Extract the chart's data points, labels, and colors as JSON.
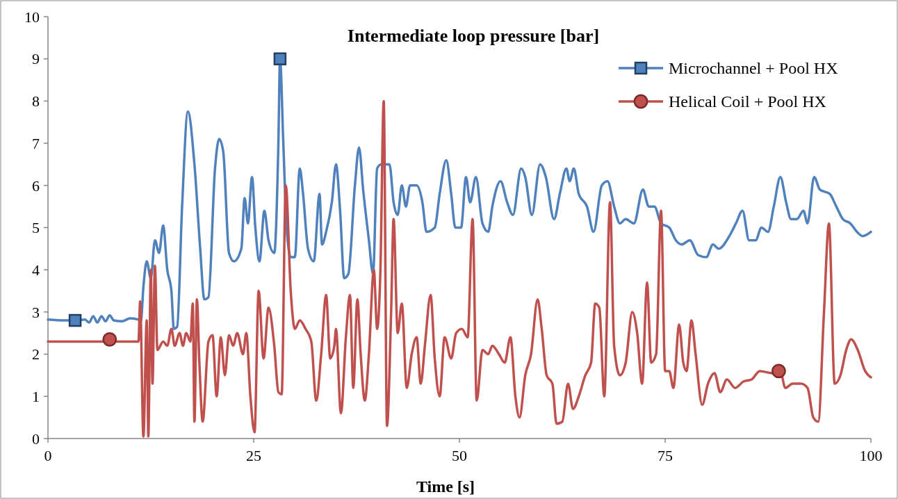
{
  "chart_data": {
    "type": "line",
    "title": "Intermediate loop pressure  [bar]",
    "xlabel": "Time [s]",
    "xlim": [
      0,
      100
    ],
    "xticks": [
      0,
      25,
      50,
      75,
      100
    ],
    "ylim": [
      0,
      10
    ],
    "yticks": [
      0,
      1,
      2,
      3,
      4,
      5,
      6,
      7,
      8,
      9,
      10
    ],
    "grid": false,
    "legend": "top right",
    "line_style": "solid",
    "series": [
      {
        "name": "Microchannel + Pool HX",
        "color": "#4f81bd",
        "x": [
          0,
          2,
          3.3,
          4.5,
          5,
          5.5,
          6,
          6.5,
          7,
          7.5,
          8,
          9,
          10,
          11,
          11.3,
          11.6,
          12,
          12.5,
          13,
          13.5,
          14,
          14.5,
          15,
          15.3,
          15.7,
          16.3,
          17,
          17.8,
          18.5,
          19,
          19.5,
          20.3,
          20.8,
          21.3,
          22,
          22.6,
          23.5,
          23.9,
          24.3,
          24.8,
          25.2,
          25.7,
          26.3,
          26.8,
          27.5,
          28,
          28.2,
          28.6,
          29,
          29.5,
          30,
          30.6,
          31,
          31.6,
          32.3,
          33,
          33.3,
          33.8,
          34.5,
          35,
          35.5,
          36,
          36.5,
          37.3,
          37.8,
          38.3,
          39,
          39.5,
          40,
          40.5,
          41.5,
          42,
          42.5,
          43,
          43.5,
          44,
          44.8,
          45.5,
          46,
          47,
          47.6,
          48.4,
          49,
          49.5,
          50.2,
          50.8,
          51.3,
          52,
          52.8,
          53.5,
          54,
          55,
          55.8,
          56.5,
          57.5,
          58,
          58.8,
          59.8,
          60.5,
          61.5,
          62.2,
          63,
          63.4,
          63.9,
          64.5,
          65.5,
          66.3,
          67.3,
          68,
          68.8,
          69.5,
          70.2,
          71.2,
          72.3,
          73,
          73.7,
          74.5,
          75.5,
          76.3,
          77,
          78,
          79,
          80,
          80.8,
          81.5,
          82.8,
          83.6,
          84.4,
          85.2,
          86,
          86.7,
          87.5,
          88.2,
          89,
          89.7,
          90.3,
          91,
          91.8,
          92.3,
          93.1,
          93.8,
          95,
          95.8,
          96.6,
          97.5,
          98.3,
          99,
          100
        ],
        "values": [
          2.82,
          2.8,
          2.8,
          2.82,
          2.75,
          2.9,
          2.75,
          2.9,
          2.78,
          2.92,
          2.8,
          2.78,
          2.85,
          2.82,
          2.8,
          3.6,
          4.2,
          3.8,
          4.7,
          4.4,
          5.05,
          4.0,
          3.5,
          2.6,
          2.65,
          5.5,
          7.75,
          6.5,
          4.5,
          3.3,
          3.35,
          6.4,
          7.1,
          6.8,
          4.4,
          4.2,
          4.5,
          5.7,
          5.1,
          6.2,
          5.0,
          4.2,
          5.4,
          4.7,
          4.4,
          7.0,
          9.0,
          7.0,
          5.0,
          4.3,
          4.3,
          6.4,
          5.8,
          4.5,
          4.2,
          5.8,
          4.6,
          4.9,
          5.6,
          6.5,
          5.4,
          3.8,
          3.9,
          6.0,
          6.9,
          5.9,
          4.7,
          3.9,
          6.4,
          6.5,
          6.5,
          5.6,
          5.3,
          6.0,
          5.5,
          6.0,
          6.0,
          5.6,
          4.9,
          5.0,
          5.8,
          6.6,
          5.8,
          5.0,
          5.0,
          6.2,
          5.6,
          6.2,
          5.1,
          4.9,
          5.5,
          6.1,
          5.6,
          5.3,
          6.4,
          6.2,
          5.3,
          6.5,
          6.2,
          5.2,
          5.8,
          6.4,
          6.1,
          6.4,
          5.8,
          5.5,
          4.9,
          6.0,
          6.1,
          5.5,
          5.1,
          5.2,
          5.1,
          5.9,
          5.5,
          5.5,
          5.1,
          5.0,
          4.7,
          4.6,
          4.7,
          4.35,
          4.3,
          4.6,
          4.5,
          4.8,
          5.1,
          5.4,
          4.7,
          4.7,
          5.0,
          4.9,
          5.5,
          6.2,
          5.6,
          5.2,
          5.2,
          5.4,
          5.1,
          6.2,
          5.9,
          5.8,
          5.5,
          5.2,
          5.1,
          4.9,
          4.8,
          4.9
        ]
      },
      {
        "name": "Helical Coil + Pool HX",
        "color": "#c0504d",
        "x": [
          0,
          11,
          11.2,
          11.6,
          12,
          12.2,
          12.5,
          12.7,
          13,
          13.3,
          14,
          14.5,
          15,
          15.4,
          16,
          16.4,
          16.8,
          17.3,
          17.6,
          17.8,
          18.1,
          18.4,
          18.8,
          19.5,
          20,
          20.5,
          21,
          21.5,
          22,
          22.5,
          23,
          23.7,
          24.1,
          24.6,
          25.1,
          25.6,
          26.2,
          26.8,
          27.5,
          28,
          28.4,
          28.9,
          29.5,
          30,
          30.6,
          31.3,
          32,
          32.6,
          33.2,
          33.8,
          34.3,
          34.8,
          35,
          35.6,
          36.2,
          36.7,
          37.1,
          37.6,
          38,
          38.5,
          39,
          39.6,
          40,
          40.4,
          40.8,
          41.2,
          41.7,
          42,
          42.5,
          43,
          43.6,
          44.2,
          44.8,
          45.3,
          45.8,
          46.5,
          47,
          47.6,
          48.2,
          49,
          49.6,
          50.3,
          51,
          51.6,
          52.1,
          52.8,
          53.5,
          54,
          54.8,
          55.5,
          56.2,
          56.8,
          57.3,
          58,
          58.7,
          59.5,
          60,
          60.6,
          61.3,
          61.8,
          62.5,
          63.2,
          63.8,
          64.5,
          65.3,
          66,
          66.5,
          67,
          67.6,
          68.3,
          68.8,
          69.5,
          70.2,
          71,
          71.6,
          72.2,
          72.8,
          73.3,
          73.9,
          74.5,
          75,
          75.5,
          76,
          76.7,
          77.2,
          77.6,
          78.2,
          78.7,
          79.5,
          80.2,
          81,
          81.7,
          82.5,
          83.5,
          84.5,
          85.5,
          86.5,
          88,
          89,
          89.6,
          90.5,
          91.5,
          92.3,
          93,
          93.6,
          94.3,
          94.9,
          95.6,
          96.3,
          97,
          97.6,
          98.4,
          99.3,
          100
        ],
        "values": [
          2.3,
          2.3,
          3.25,
          0.05,
          2.8,
          0.05,
          4.0,
          1.3,
          4.1,
          2.1,
          2.3,
          2.2,
          2.6,
          2.2,
          2.5,
          2.2,
          2.5,
          2.3,
          3.2,
          0.4,
          3.3,
          1.8,
          0.4,
          2.3,
          2.45,
          1.0,
          2.4,
          1.5,
          2.45,
          2.2,
          2.5,
          2.0,
          2.5,
          1.0,
          0.15,
          3.5,
          1.9,
          3.1,
          2.2,
          1.1,
          1.05,
          6.0,
          3.5,
          2.6,
          2.8,
          2.6,
          2.3,
          0.9,
          2.0,
          3.4,
          1.9,
          2.2,
          2.6,
          0.6,
          2.4,
          3.4,
          1.2,
          3.3,
          2.0,
          0.9,
          2.0,
          4.0,
          2.6,
          4.0,
          8.0,
          0.3,
          3.0,
          5.2,
          2.5,
          3.2,
          1.2,
          2.0,
          2.4,
          1.3,
          2.2,
          3.4,
          1.9,
          1.0,
          2.4,
          1.9,
          2.5,
          2.6,
          2.4,
          5.2,
          0.9,
          2.1,
          2.0,
          2.2,
          2.0,
          1.8,
          2.4,
          1.0,
          0.5,
          1.5,
          2.0,
          3.3,
          2.6,
          1.5,
          1.3,
          0.35,
          0.4,
          1.3,
          0.7,
          1.0,
          1.5,
          1.8,
          3.2,
          3.1,
          1.0,
          5.6,
          2.2,
          1.5,
          1.8,
          3.0,
          2.5,
          1.3,
          3.7,
          1.8,
          2.0,
          5.4,
          1.6,
          1.6,
          1.2,
          2.7,
          1.8,
          1.6,
          2.8,
          2.0,
          0.8,
          1.3,
          1.55,
          1.1,
          1.4,
          1.2,
          1.35,
          1.4,
          1.6,
          1.55,
          1.6,
          1.2,
          1.3,
          1.3,
          1.2,
          0.5,
          0.4,
          3.0,
          5.1,
          1.3,
          1.5,
          2.1,
          2.35,
          2.1,
          1.6,
          1.45
        ]
      },
      {
        "type": "scatter",
        "color": "#4f81bd",
        "marker": "square",
        "x": [
          3.3,
          28.2
        ],
        "values": [
          2.8,
          9.0
        ]
      },
      {
        "type": "scatter",
        "color": "#c0504d",
        "marker": "circle",
        "x": [
          7.5,
          88.8
        ],
        "values": [
          2.35,
          1.6
        ]
      }
    ]
  }
}
